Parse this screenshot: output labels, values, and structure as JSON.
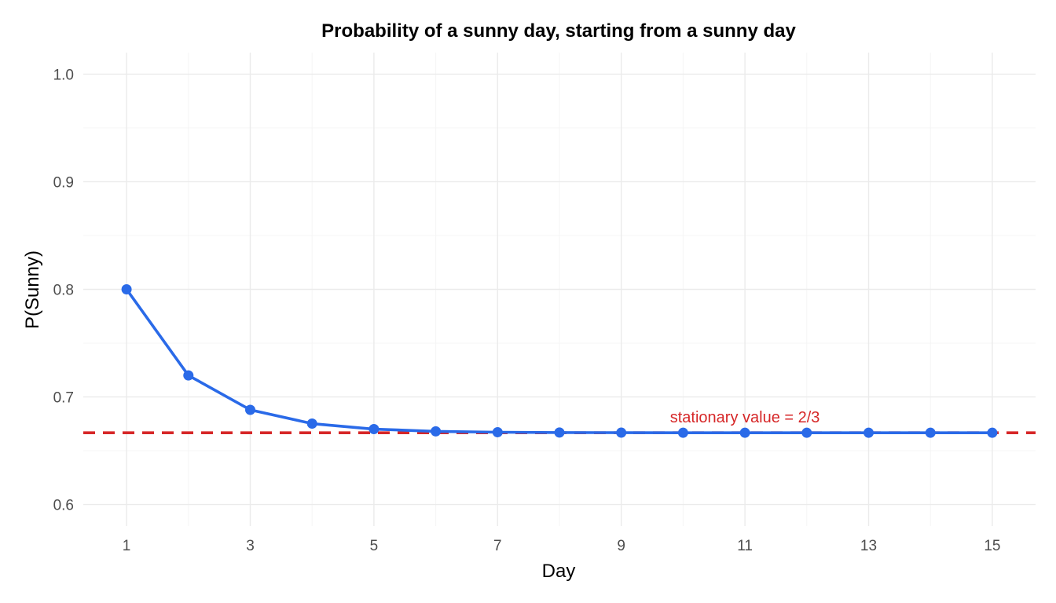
{
  "chart_data": {
    "type": "line",
    "title": "Probability of a sunny day, starting from a sunny day",
    "xlabel": "Day",
    "ylabel": "P(Sunny)",
    "xlim": [
      0.3,
      15.7
    ],
    "ylim": [
      0.58,
      1.02
    ],
    "x_ticks": [
      1,
      3,
      5,
      7,
      9,
      11,
      13,
      15
    ],
    "y_ticks": [
      0.6,
      0.7,
      0.8,
      0.9,
      1.0
    ],
    "y_tick_labels": [
      "0.6",
      "0.7",
      "0.8",
      "0.9",
      "1.0"
    ],
    "grid": true,
    "series": [
      {
        "x": [
          1,
          2,
          3,
          4,
          5,
          6,
          7,
          8,
          9,
          10,
          11,
          12,
          13,
          14,
          15
        ],
        "values": [
          0.8,
          0.72,
          0.688,
          0.6752,
          0.6701,
          0.668,
          0.6672,
          0.6669,
          0.6668,
          0.6667,
          0.6667,
          0.6667,
          0.6667,
          0.6667,
          0.6667
        ],
        "color": "#2a6ae8"
      }
    ],
    "reference_line": {
      "y": 0.6667,
      "style": "dashed",
      "color": "#d62728"
    },
    "annotations": [
      {
        "text": "stationary value = 2/3",
        "x": 11,
        "y": 0.6813,
        "color": "#d62728"
      }
    ]
  }
}
